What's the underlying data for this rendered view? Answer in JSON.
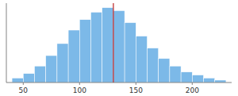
{
  "chart_data": {
    "type": "histogram",
    "bins": [
      40,
      50,
      60,
      70,
      80,
      90,
      100,
      110,
      120,
      130,
      140,
      150,
      160,
      170,
      180,
      190,
      200,
      210,
      220,
      230
    ],
    "values": [
      1.5,
      3.0,
      5.5,
      9.0,
      13.0,
      17.5,
      21.0,
      23.5,
      25.0,
      24.0,
      20.0,
      15.5,
      11.5,
      8.0,
      5.5,
      3.5,
      2.5,
      1.5,
      0.8
    ],
    "color": "#7cb9e8",
    "reference_line": {
      "x": 130,
      "color": "#bb2222"
    },
    "xlim": [
      35,
      235
    ],
    "ylim": [
      0,
      26.5
    ],
    "xticks": [
      50,
      100,
      150,
      200
    ],
    "tick_labels": "x"
  }
}
